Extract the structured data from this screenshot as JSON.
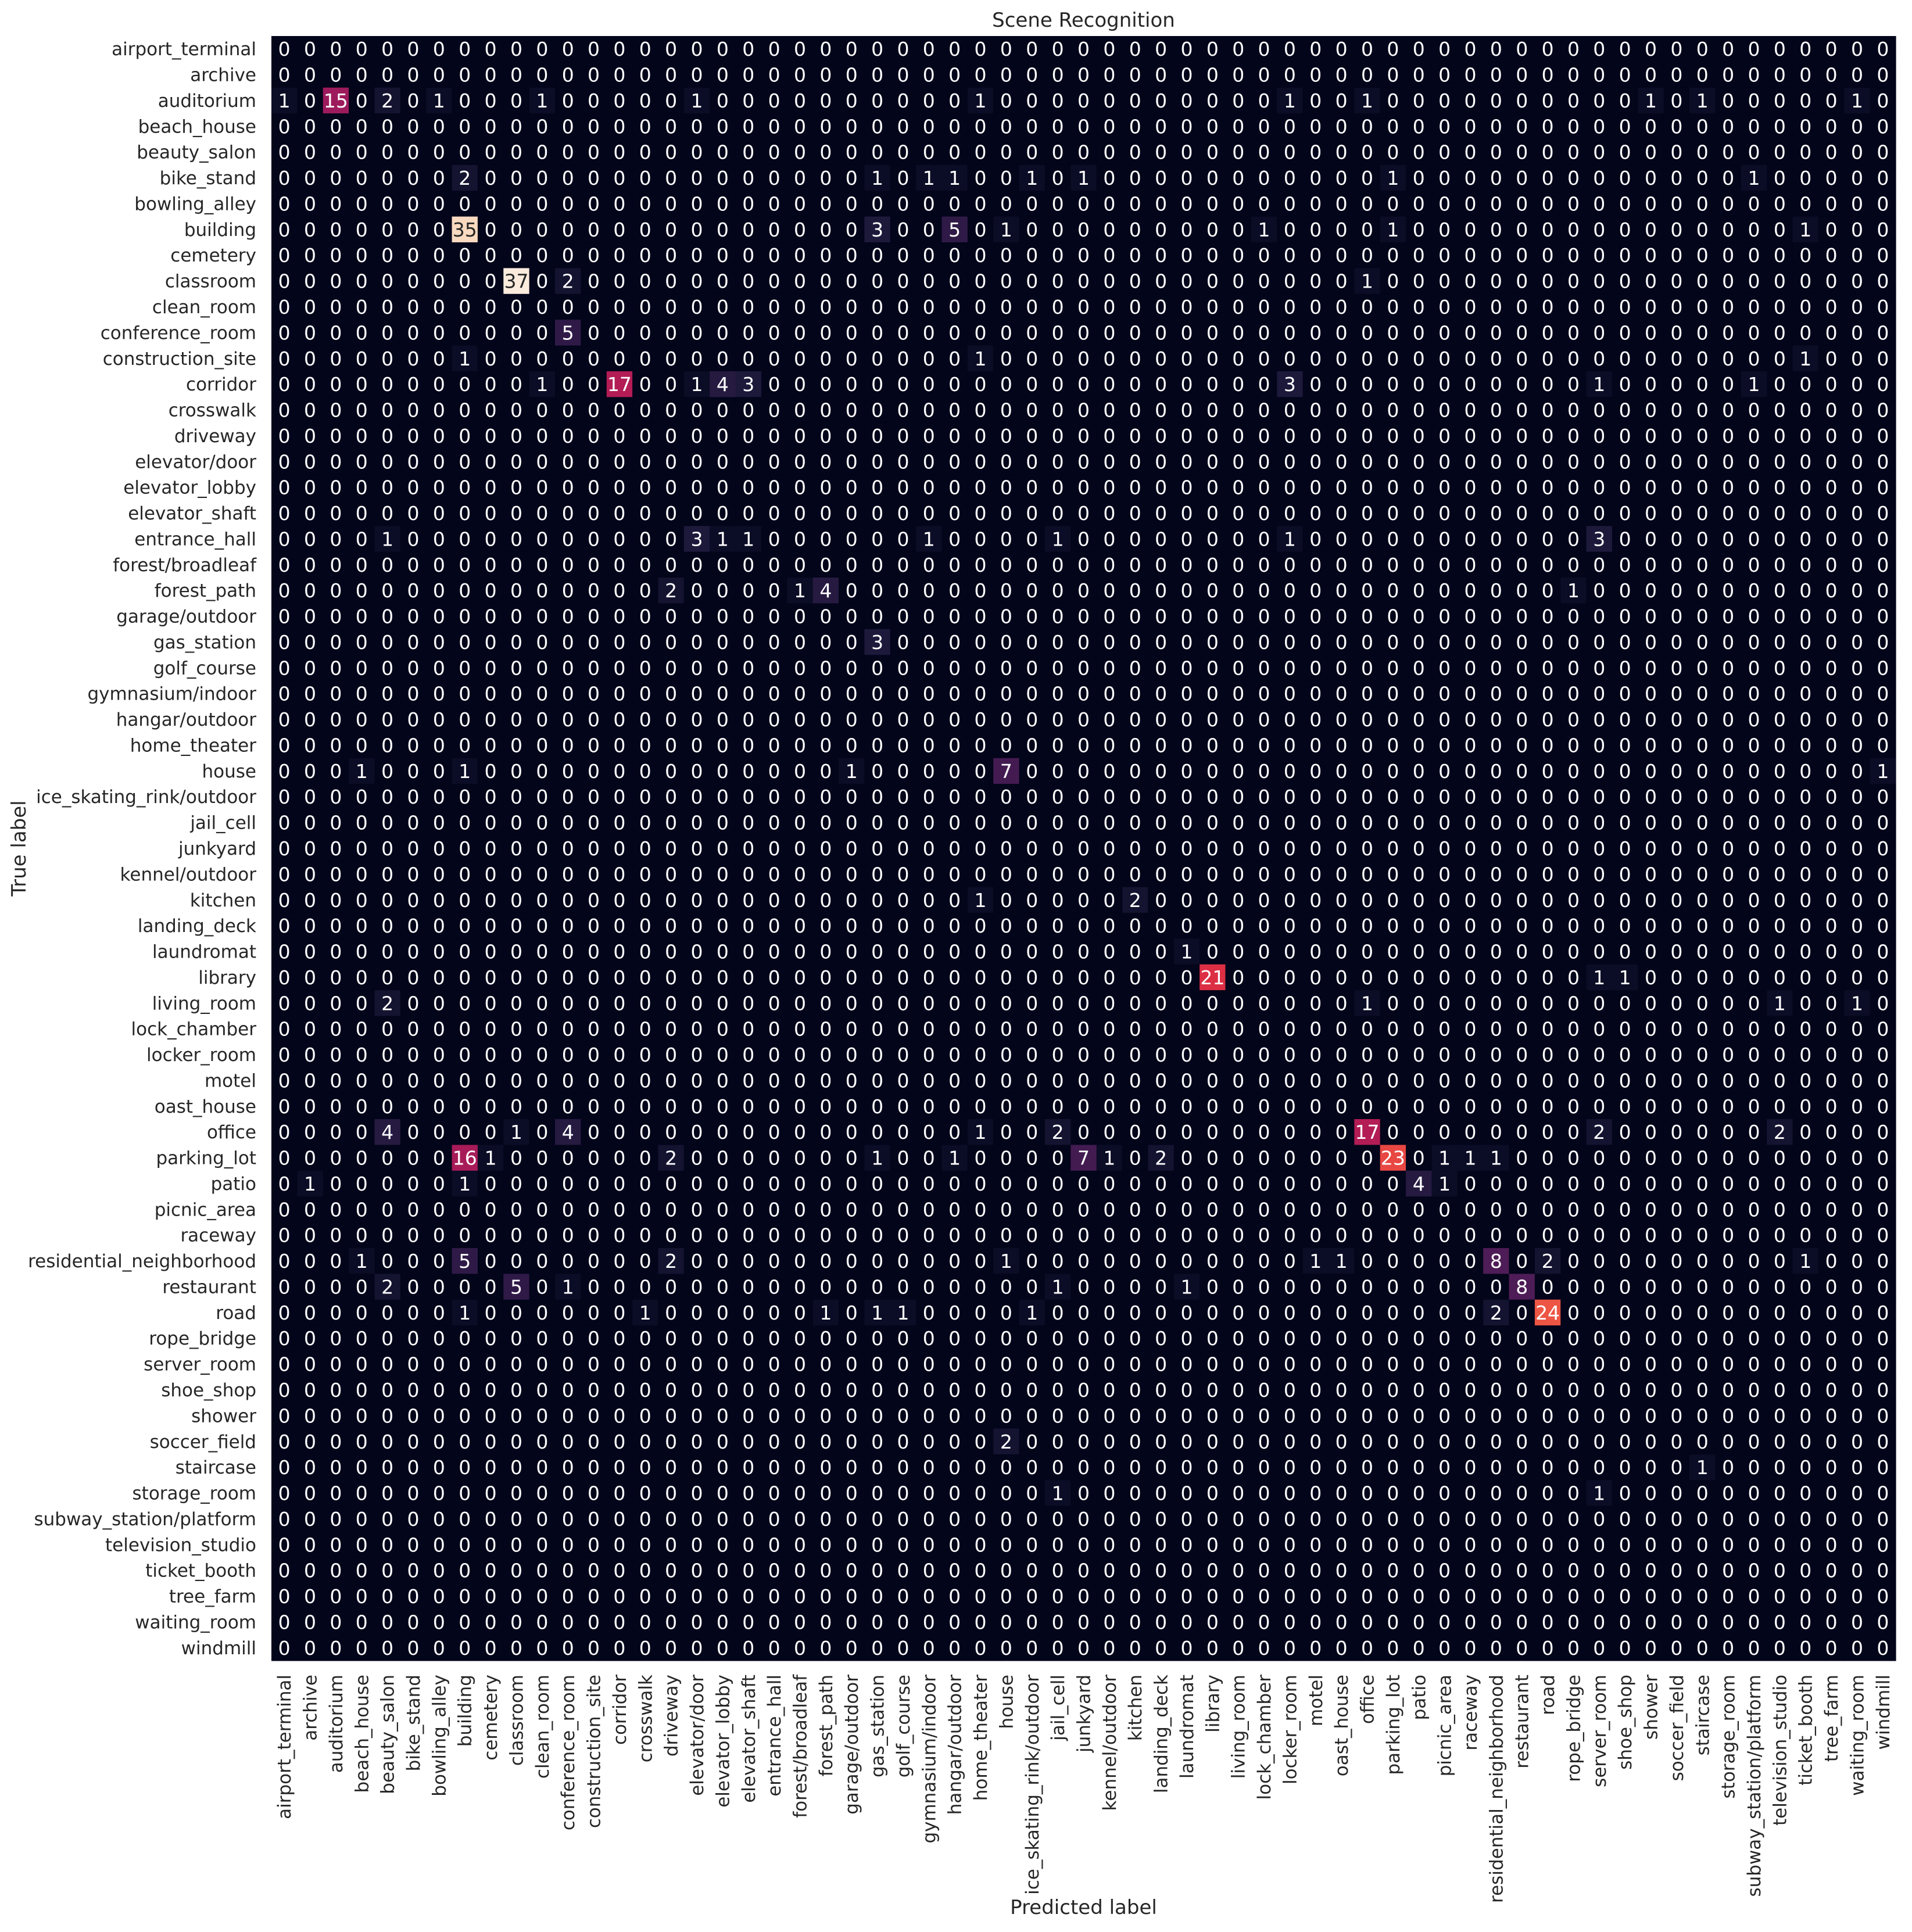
{
  "chart_data": {
    "type": "heatmap",
    "title": "Scene Recognition",
    "xlabel": "Predicted label",
    "ylabel": "True label",
    "labels": [
      "airport_terminal",
      "archive",
      "auditorium",
      "beach_house",
      "beauty_salon",
      "bike_stand",
      "bowling_alley",
      "building",
      "cemetery",
      "classroom",
      "clean_room",
      "conference_room",
      "construction_site",
      "corridor",
      "crosswalk",
      "driveway",
      "elevator/door",
      "elevator_lobby",
      "elevator_shaft",
      "entrance_hall",
      "forest/broadleaf",
      "forest_path",
      "garage/outdoor",
      "gas_station",
      "golf_course",
      "gymnasium/indoor",
      "hangar/outdoor",
      "home_theater",
      "house",
      "ice_skating_rink/outdoor",
      "jail_cell",
      "junkyard",
      "kennel/outdoor",
      "kitchen",
      "landing_deck",
      "laundromat",
      "library",
      "living_room",
      "lock_chamber",
      "locker_room",
      "motel",
      "oast_house",
      "office",
      "parking_lot",
      "patio",
      "picnic_area",
      "raceway",
      "residential_neighborhood",
      "restaurant",
      "road",
      "rope_bridge",
      "server_room",
      "shoe_shop",
      "shower",
      "soccer_field",
      "staircase",
      "storage_room",
      "subway_station/platform",
      "television_studio",
      "ticket_booth",
      "tree_farm",
      "waiting_room",
      "windmill"
    ],
    "vmin": 0,
    "vmax": 37,
    "colormap": [
      "#03051a",
      "#1d1a3c",
      "#3a1a4d",
      "#5c1d5c",
      "#801f5f",
      "#a11a5b",
      "#c41e4f",
      "#e13342",
      "#f05e44",
      "#f6895d",
      "#f7ad86",
      "#f9cfb0",
      "#faebdd"
    ],
    "nonzero": [
      [
        2,
        0,
        1
      ],
      [
        2,
        2,
        15
      ],
      [
        2,
        4,
        2
      ],
      [
        2,
        6,
        1
      ],
      [
        2,
        10,
        1
      ],
      [
        2,
        16,
        1
      ],
      [
        2,
        27,
        1
      ],
      [
        2,
        39,
        1
      ],
      [
        2,
        42,
        1
      ],
      [
        2,
        53,
        1
      ],
      [
        2,
        55,
        1
      ],
      [
        2,
        61,
        1
      ],
      [
        5,
        7,
        2
      ],
      [
        5,
        23,
        1
      ],
      [
        5,
        25,
        1
      ],
      [
        5,
        26,
        1
      ],
      [
        5,
        29,
        1
      ],
      [
        5,
        31,
        1
      ],
      [
        5,
        43,
        1
      ],
      [
        5,
        57,
        1
      ],
      [
        7,
        7,
        35
      ],
      [
        7,
        23,
        3
      ],
      [
        7,
        26,
        5
      ],
      [
        7,
        28,
        1
      ],
      [
        7,
        38,
        1
      ],
      [
        7,
        43,
        1
      ],
      [
        7,
        59,
        1
      ],
      [
        9,
        9,
        37
      ],
      [
        9,
        11,
        2
      ],
      [
        9,
        42,
        1
      ],
      [
        11,
        11,
        5
      ],
      [
        12,
        7,
        1
      ],
      [
        12,
        27,
        1
      ],
      [
        12,
        59,
        1
      ],
      [
        13,
        10,
        1
      ],
      [
        13,
        13,
        17
      ],
      [
        13,
        16,
        1
      ],
      [
        13,
        17,
        4
      ],
      [
        13,
        18,
        3
      ],
      [
        13,
        39,
        3
      ],
      [
        13,
        51,
        1
      ],
      [
        13,
        57,
        1
      ],
      [
        19,
        4,
        1
      ],
      [
        19,
        16,
        3
      ],
      [
        19,
        17,
        1
      ],
      [
        19,
        18,
        1
      ],
      [
        19,
        25,
        1
      ],
      [
        19,
        30,
        1
      ],
      [
        19,
        39,
        1
      ],
      [
        19,
        51,
        3
      ],
      [
        21,
        15,
        2
      ],
      [
        21,
        20,
        1
      ],
      [
        21,
        21,
        4
      ],
      [
        21,
        50,
        1
      ],
      [
        23,
        23,
        3
      ],
      [
        28,
        3,
        1
      ],
      [
        28,
        7,
        1
      ],
      [
        28,
        22,
        1
      ],
      [
        28,
        28,
        7
      ],
      [
        28,
        62,
        1
      ],
      [
        33,
        27,
        1
      ],
      [
        33,
        33,
        2
      ],
      [
        35,
        35,
        1
      ],
      [
        36,
        36,
        21
      ],
      [
        36,
        51,
        1
      ],
      [
        36,
        52,
        1
      ],
      [
        37,
        4,
        2
      ],
      [
        37,
        42,
        1
      ],
      [
        37,
        58,
        1
      ],
      [
        37,
        61,
        1
      ],
      [
        42,
        4,
        4
      ],
      [
        42,
        9,
        1
      ],
      [
        42,
        11,
        4
      ],
      [
        42,
        27,
        1
      ],
      [
        42,
        30,
        2
      ],
      [
        42,
        42,
        17
      ],
      [
        42,
        51,
        2
      ],
      [
        42,
        58,
        2
      ],
      [
        43,
        7,
        16
      ],
      [
        43,
        8,
        1
      ],
      [
        43,
        15,
        2
      ],
      [
        43,
        23,
        1
      ],
      [
        43,
        26,
        1
      ],
      [
        43,
        31,
        7
      ],
      [
        43,
        32,
        1
      ],
      [
        43,
        34,
        2
      ],
      [
        43,
        43,
        23
      ],
      [
        43,
        45,
        1
      ],
      [
        43,
        46,
        1
      ],
      [
        43,
        47,
        1
      ],
      [
        44,
        1,
        1
      ],
      [
        44,
        7,
        1
      ],
      [
        44,
        44,
        4
      ],
      [
        44,
        45,
        1
      ],
      [
        47,
        3,
        1
      ],
      [
        47,
        7,
        5
      ],
      [
        47,
        15,
        2
      ],
      [
        47,
        28,
        1
      ],
      [
        47,
        40,
        1
      ],
      [
        47,
        41,
        1
      ],
      [
        47,
        47,
        8
      ],
      [
        47,
        49,
        2
      ],
      [
        47,
        59,
        1
      ],
      [
        48,
        4,
        2
      ],
      [
        48,
        9,
        5
      ],
      [
        48,
        11,
        1
      ],
      [
        48,
        30,
        1
      ],
      [
        48,
        35,
        1
      ],
      [
        48,
        48,
        8
      ],
      [
        49,
        7,
        1
      ],
      [
        49,
        14,
        1
      ],
      [
        49,
        21,
        1
      ],
      [
        49,
        23,
        1
      ],
      [
        49,
        24,
        1
      ],
      [
        49,
        29,
        1
      ],
      [
        49,
        47,
        2
      ],
      [
        49,
        49,
        24
      ],
      [
        54,
        28,
        2
      ],
      [
        55,
        55,
        1
      ],
      [
        56,
        30,
        1
      ],
      [
        56,
        51,
        1
      ]
    ]
  }
}
